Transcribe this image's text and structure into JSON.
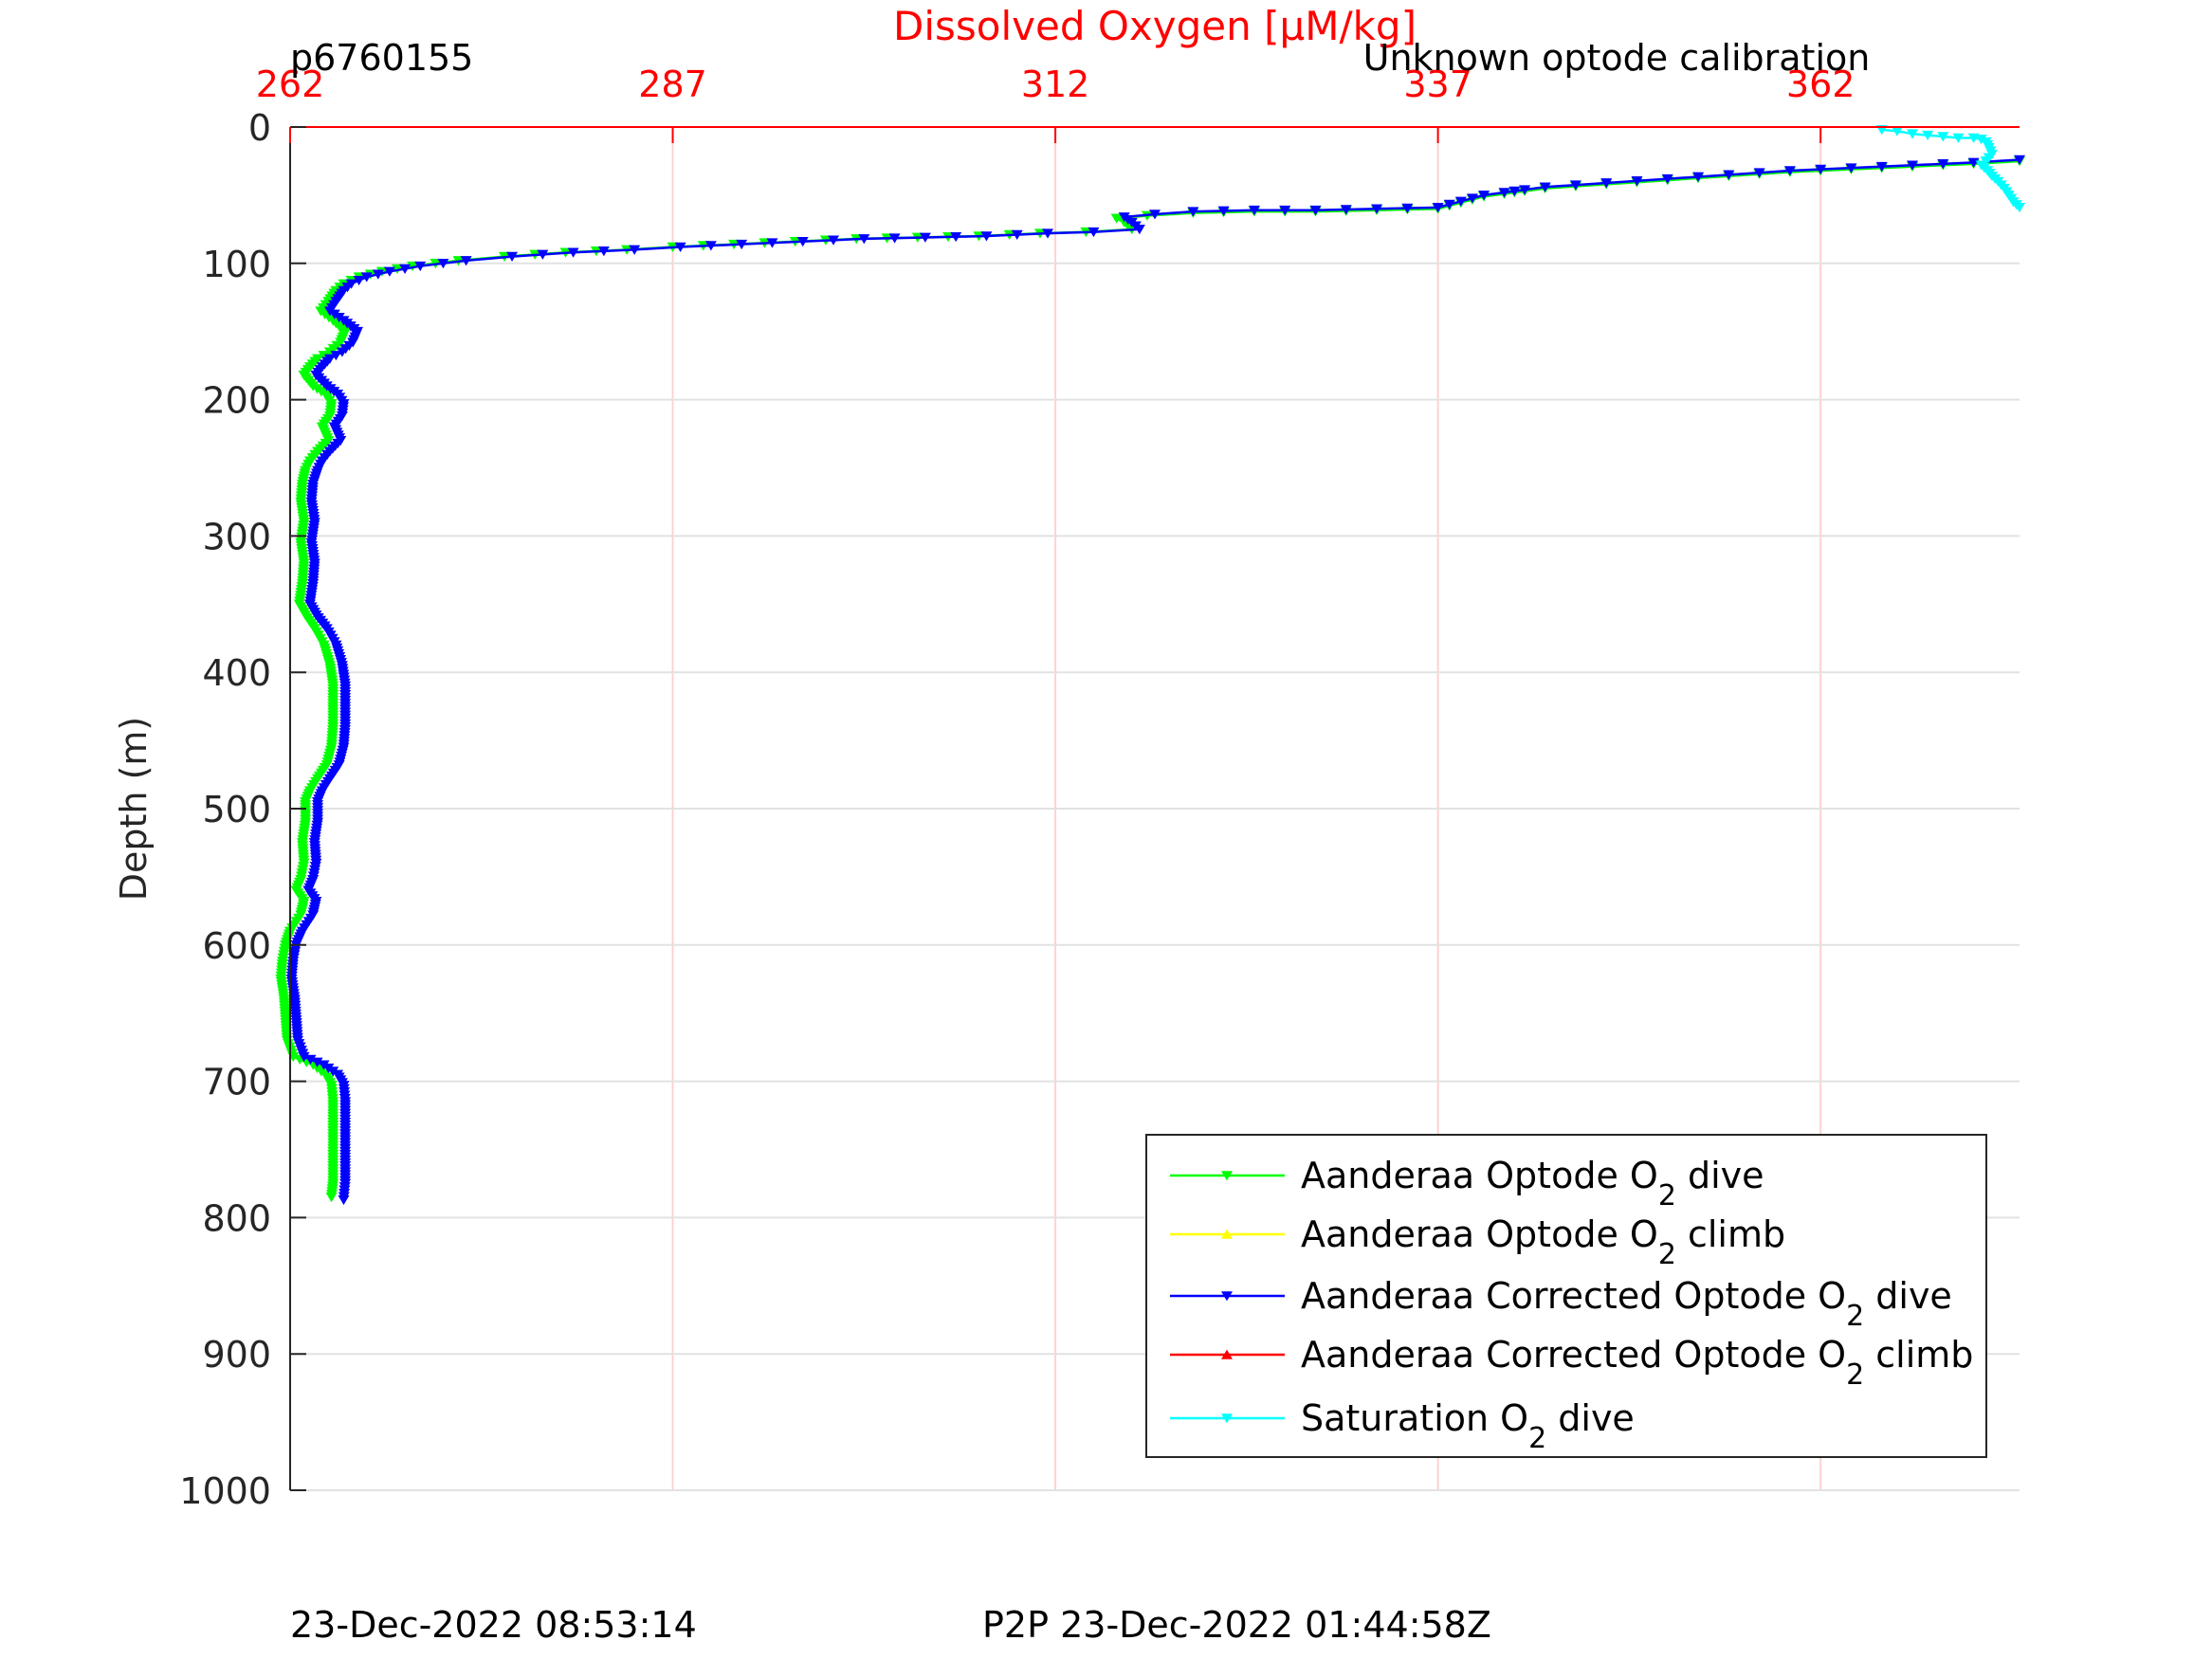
{
  "chart_data": {
    "type": "line",
    "title": "Dissolved Oxygen [μM/kg]",
    "title_color": "#ff0000",
    "top_left_label": "p6760155",
    "top_right_label": "Unknown optode calibration",
    "ylabel": "Depth (m)",
    "xlim": [
      262,
      375
    ],
    "ylim": [
      0,
      1000
    ],
    "y_reversed": true,
    "x_ticks": [
      "262",
      "287",
      "312",
      "337",
      "362"
    ],
    "x_tick_values": [
      262,
      287,
      312,
      337,
      362
    ],
    "y_ticks": [
      "0",
      "100",
      "200",
      "300",
      "400",
      "500",
      "600",
      "700",
      "800",
      "900",
      "1000"
    ],
    "y_tick_values": [
      0,
      100,
      200,
      300,
      400,
      500,
      600,
      700,
      800,
      900,
      1000
    ],
    "x_grid_color": "#ff0000",
    "grid": true,
    "legend_position": "bottom-right",
    "footer_left": "23-Dec-2022 08:53:14",
    "footer_center": "P2P 23-Dec-2022 01:44:58Z",
    "series": [
      {
        "name": "Aanderaa Optode O2 dive",
        "legend": {
          "pre": "Aanderaa Optode O",
          "sub": "2",
          "post": " dive"
        },
        "color": "#00ff00",
        "marker": "down",
        "points": [
          [
            375,
            25
          ],
          [
            372,
            27
          ],
          [
            368,
            29
          ],
          [
            364,
            31
          ],
          [
            360,
            33
          ],
          [
            356,
            36
          ],
          [
            352,
            39
          ],
          [
            348,
            42
          ],
          [
            344,
            45
          ],
          [
            340,
            51
          ],
          [
            337,
            60
          ],
          [
            333,
            61
          ],
          [
            329,
            62
          ],
          [
            325,
            62
          ],
          [
            321,
            63
          ],
          [
            318,
            65
          ],
          [
            316,
            67
          ],
          [
            316.5,
            70
          ],
          [
            317,
            75
          ],
          [
            314,
            77
          ],
          [
            311,
            78
          ],
          [
            307,
            80
          ],
          [
            303,
            81
          ],
          [
            299,
            82
          ],
          [
            295,
            84
          ],
          [
            291,
            86
          ],
          [
            287,
            88
          ],
          [
            284,
            90
          ],
          [
            280,
            92
          ],
          [
            276,
            95
          ],
          [
            273,
            98
          ],
          [
            270,
            102
          ],
          [
            268,
            106
          ],
          [
            266.5,
            110
          ],
          [
            265.5,
            115
          ],
          [
            265,
            120
          ],
          [
            264.5,
            128
          ],
          [
            264,
            135
          ],
          [
            264.8,
            142
          ],
          [
            265.6,
            150
          ],
          [
            265.3,
            158
          ],
          [
            264.6,
            165
          ],
          [
            263.8,
            170
          ],
          [
            263.3,
            176
          ],
          [
            262.9,
            182
          ],
          [
            263.5,
            190
          ],
          [
            264.3,
            196
          ],
          [
            264.7,
            203
          ],
          [
            264.6,
            212
          ],
          [
            264.1,
            220
          ],
          [
            264.5,
            230
          ],
          [
            263.8,
            238
          ],
          [
            263.3,
            245
          ],
          [
            263.0,
            252
          ],
          [
            262.8,
            262
          ],
          [
            262.7,
            275
          ],
          [
            262.9,
            290
          ],
          [
            262.7,
            305
          ],
          [
            262.9,
            320
          ],
          [
            262.8,
            335
          ],
          [
            262.6,
            350
          ],
          [
            263.0,
            358
          ],
          [
            263.6,
            368
          ],
          [
            264.2,
            380
          ],
          [
            264.6,
            395
          ],
          [
            264.8,
            410
          ],
          [
            264.8,
            425
          ],
          [
            264.8,
            440
          ],
          [
            264.7,
            455
          ],
          [
            264.4,
            468
          ],
          [
            263.8,
            478
          ],
          [
            263.3,
            487
          ],
          [
            263.0,
            495
          ],
          [
            263.0,
            510
          ],
          [
            262.8,
            525
          ],
          [
            262.9,
            540
          ],
          [
            262.7,
            552
          ],
          [
            262.4,
            560
          ],
          [
            262.9,
            568
          ],
          [
            262.7,
            578
          ],
          [
            262.0,
            590
          ],
          [
            261.7,
            600
          ],
          [
            261.5,
            612
          ],
          [
            261.4,
            625
          ],
          [
            261.6,
            640
          ],
          [
            261.7,
            655
          ],
          [
            261.8,
            670
          ],
          [
            262.2,
            682
          ],
          [
            263.5,
            688
          ],
          [
            264.3,
            695
          ],
          [
            264.7,
            703
          ],
          [
            264.8,
            715
          ],
          [
            264.8,
            730
          ],
          [
            264.8,
            745
          ],
          [
            264.8,
            760
          ],
          [
            264.8,
            775
          ],
          [
            264.7,
            785
          ]
        ]
      },
      {
        "name": "Aanderaa Optode O2 climb",
        "legend": {
          "pre": "Aanderaa Optode O",
          "sub": "2",
          "post": " climb"
        },
        "color": "#ffff00",
        "marker": "up",
        "points": []
      },
      {
        "name": "Aanderaa Corrected Optode O2 dive",
        "legend": {
          "pre": "Aanderaa Corrected Optode O",
          "sub": "2",
          "post": " dive"
        },
        "color": "#0000ff",
        "marker": "down",
        "points": [
          [
            375,
            24
          ],
          [
            372,
            26
          ],
          [
            368,
            28
          ],
          [
            364,
            30
          ],
          [
            360,
            32
          ],
          [
            356,
            35
          ],
          [
            352,
            38
          ],
          [
            348,
            41
          ],
          [
            344,
            44
          ],
          [
            340,
            50
          ],
          [
            337,
            59
          ],
          [
            333,
            60
          ],
          [
            329,
            61
          ],
          [
            325,
            61
          ],
          [
            321,
            62
          ],
          [
            318.5,
            64
          ],
          [
            316.5,
            66
          ],
          [
            317,
            70
          ],
          [
            317.5,
            75
          ],
          [
            314.5,
            77
          ],
          [
            311.5,
            78
          ],
          [
            307.5,
            80
          ],
          [
            303.5,
            81
          ],
          [
            299.5,
            82
          ],
          [
            295.5,
            84
          ],
          [
            291.5,
            86
          ],
          [
            287.5,
            88
          ],
          [
            284.5,
            90
          ],
          [
            280.5,
            92
          ],
          [
            276.5,
            95
          ],
          [
            273.5,
            98
          ],
          [
            270.5,
            102
          ],
          [
            268.5,
            106
          ],
          [
            267,
            110
          ],
          [
            266,
            115
          ],
          [
            265.5,
            120
          ],
          [
            265,
            128
          ],
          [
            264.6,
            135
          ],
          [
            265.5,
            142
          ],
          [
            266.4,
            150
          ],
          [
            266.1,
            158
          ],
          [
            265.4,
            165
          ],
          [
            264.6,
            170
          ],
          [
            264.1,
            176
          ],
          [
            263.7,
            182
          ],
          [
            264.4,
            190
          ],
          [
            265.1,
            196
          ],
          [
            265.5,
            203
          ],
          [
            265.4,
            212
          ],
          [
            264.9,
            220
          ],
          [
            265.3,
            230
          ],
          [
            264.6,
            238
          ],
          [
            264.1,
            245
          ],
          [
            263.8,
            252
          ],
          [
            263.5,
            262
          ],
          [
            263.4,
            275
          ],
          [
            263.6,
            290
          ],
          [
            263.4,
            305
          ],
          [
            263.6,
            320
          ],
          [
            263.5,
            335
          ],
          [
            263.3,
            350
          ],
          [
            263.7,
            358
          ],
          [
            264.4,
            368
          ],
          [
            265.0,
            380
          ],
          [
            265.4,
            395
          ],
          [
            265.6,
            410
          ],
          [
            265.6,
            425
          ],
          [
            265.6,
            440
          ],
          [
            265.5,
            455
          ],
          [
            265.2,
            468
          ],
          [
            264.6,
            478
          ],
          [
            264.1,
            487
          ],
          [
            263.8,
            495
          ],
          [
            263.8,
            510
          ],
          [
            263.6,
            525
          ],
          [
            263.7,
            540
          ],
          [
            263.5,
            552
          ],
          [
            263.2,
            560
          ],
          [
            263.7,
            568
          ],
          [
            263.5,
            578
          ],
          [
            262.8,
            590
          ],
          [
            262.4,
            600
          ],
          [
            262.2,
            612
          ],
          [
            262.1,
            625
          ],
          [
            262.3,
            640
          ],
          [
            262.4,
            655
          ],
          [
            262.5,
            670
          ],
          [
            262.9,
            682
          ],
          [
            264.2,
            688
          ],
          [
            265.1,
            695
          ],
          [
            265.5,
            703
          ],
          [
            265.6,
            715
          ],
          [
            265.6,
            730
          ],
          [
            265.6,
            745
          ],
          [
            265.6,
            760
          ],
          [
            265.6,
            775
          ],
          [
            265.5,
            787
          ]
        ]
      },
      {
        "name": "Aanderaa Corrected Optode O2 climb",
        "legend": {
          "pre": "Aanderaa Corrected Optode O",
          "sub": "2",
          "post": " climb"
        },
        "color": "#ff0000",
        "marker": "up",
        "points": []
      },
      {
        "name": "Saturation O2 dive",
        "legend": {
          "pre": "Saturation O",
          "sub": "2",
          "post": " dive"
        },
        "color": "#00ffff",
        "marker": "down",
        "points": [
          [
            366,
            2
          ],
          [
            367,
            3
          ],
          [
            368,
            5
          ],
          [
            369,
            6
          ],
          [
            370,
            7
          ],
          [
            371,
            8
          ],
          [
            372,
            8
          ],
          [
            372.5,
            9
          ],
          [
            372.8,
            11
          ],
          [
            373,
            15
          ],
          [
            373.2,
            20
          ],
          [
            372.8,
            25
          ],
          [
            372.5,
            28
          ],
          [
            372.9,
            32
          ],
          [
            373.2,
            36
          ],
          [
            373.6,
            40
          ],
          [
            374.0,
            45
          ],
          [
            374.3,
            50
          ],
          [
            374.6,
            55
          ],
          [
            375,
            59
          ]
        ]
      }
    ]
  }
}
